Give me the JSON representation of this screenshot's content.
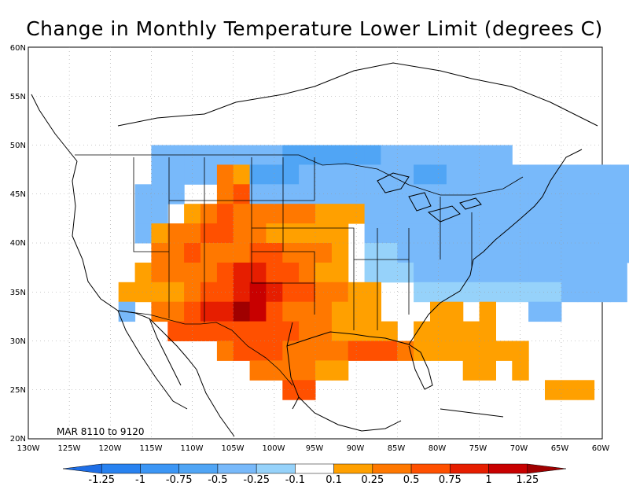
{
  "title": "Change in Monthly Temperature Lower Limit (degrees C)",
  "period_label": "MAR 8110 to 9120",
  "lat_labels": [
    "20N",
    "25N",
    "30N",
    "35N",
    "40N",
    "45N",
    "50N",
    "55N",
    "60N"
  ],
  "lon_labels": [
    "130W",
    "125W",
    "120W",
    "115W",
    "110W",
    "105W",
    "100W",
    "95W",
    "90W",
    "85W",
    "80W",
    "75W",
    "70W",
    "65W",
    "60W"
  ],
  "colorbar": {
    "labels": [
      "-1.25",
      "-1",
      "-0.75",
      "-0.5",
      "-0.25",
      "-0.1",
      "0.1",
      "0.25",
      "0.5",
      "0.75",
      "1",
      "1.25"
    ],
    "colors": [
      "#1e6ee6",
      "#2882f0",
      "#3c96f5",
      "#50a5f5",
      "#78b9fa",
      "#96d2fa",
      "#ffffff",
      "#ffa000",
      "#ff7800",
      "#ff5000",
      "#e61e00",
      "#c80000",
      "#a00000"
    ]
  },
  "map": {
    "lon_range": [
      -130,
      -60
    ],
    "lat_range": [
      20,
      60
    ],
    "cell_degrees": 2,
    "colors": {
      "b1": "#50a5f5",
      "b2": "#78b9fa",
      "b3": "#96d2fa",
      "o1": "#ffa000",
      "o2": "#ff7800",
      "o3": "#ff5000",
      "r1": "#e61e00",
      "r2": "#c80000",
      "r3": "#a00000"
    },
    "rows": [
      {
        "lat": 49,
        "cells": "..........b2b2b2b2b2b2b2b2b1b1b1b1b1b1b2b2b2b2b2b2b2b2...................."
      },
      {
        "lat": 47,
        "cells": "..........b2b2b2b2o2o1b1b1b1b2b2b2b2b2b2b2b1b1b2b2b2b2b2b2b2b2b2b2b2b2b2b2b2b2b2b1b1...."
      },
      {
        "lat": 45,
        "cells": "........b2b2b2....o2o3b2b2b2b2b2b2b2b2b2b2b2b2b2b2b2b2b2b2b2b2b2b2b2b2b2b2b2b2b2b2b2b1....."
      },
      {
        "lat": 43,
        "cells": "........b2b2..o1o2o3o2o2o2o2o2o1o1o1b2b2b2b2b2b2b2b2b2b2b2b2b2b2b2b2b2b2b2b2b2b2b2b1....."
      },
      {
        "lat": 41,
        "cells": "........b2o1o2o2o3o3o2o2o1o1o1o1o1..b2b2b2b2b2b2b2b2b2b2b2b2b2b2b2b2b2b2b1b1........"
      },
      {
        "lat": 39,
        "cells": "..........o2o2o3o2o2o2o3o3o2o2o2o1..b3b3b2b2b2b2b2b2b2b2b2b2b2b2b2b2b2.........."
      },
      {
        "lat": 37,
        "cells": "........o1o2o2o2o2o3r1r1o3o3o2o1o1..b3b3b3b2b2b2b2b2b2b2b2b2b2b2b2b2...b2.........."
      },
      {
        "lat": 35,
        "cells": "......o1o1o1o1o2o3o3r1r2r1o3o3o2o2o1o1....b3b3b3b3b3b3b3b3b3b2b2b2b2.........."
      },
      {
        "lat": 33,
        "cells": "......b2..o2o2o3r1r1r3r2o3o2o2o2o1o1o1......o1o1..o1....b2b2.........."
      },
      {
        "lat": 31,
        "cells": "............o3o3o3o3o3o3o3o3o2o2o1o1o1o1..o1o1o1o1o1...........  "
      },
      {
        "lat": 29,
        "cells": "..................o2o3o3o3o2o2o2o2o3o3o3o2o1o1o1o1o1o1o1.............."
      },
      {
        "lat": 27,
        "cells": "......................o2o2o2o2o1o1..............o1o1..o1.............."
      },
      {
        "lat": 25,
        "cells": "..........................o3o3............................o1o1o1.............."
      }
    ]
  }
}
